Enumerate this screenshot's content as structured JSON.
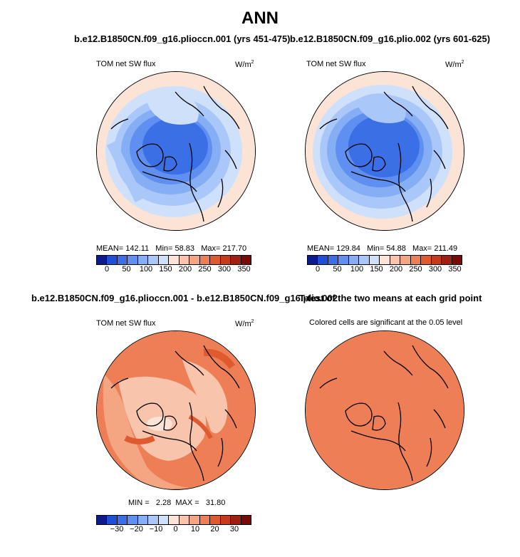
{
  "main_title": "ANN",
  "panels": {
    "top_left": {
      "case_title": "b.e12.B1850CN.f09_g16.plioccn.001 (yrs 451-475)",
      "variable": "TOM net SW flux",
      "units": "W/m",
      "units_sup": "2",
      "mean_label": "MEAN=",
      "mean": "142.11",
      "min_label": "Min=",
      "min": "58.83",
      "max_label": "Max=",
      "max": "217.70"
    },
    "top_right": {
      "case_title": "b.e12.B1850CN.f09_g16.plio.002 (yrs 601-625)",
      "variable": "TOM net SW flux",
      "units": "W/m",
      "units_sup": "2",
      "mean_label": "MEAN=",
      "mean": "129.84",
      "min_label": "Min=",
      "min": "54.88",
      "max_label": "Max=",
      "max": "211.49"
    },
    "bottom_left": {
      "case_title": "b.e12.B1850CN.f09_g16.plioccn.001 - b.e12.B1850CN.f09_g16.plio.002",
      "variable": "TOM net SW flux",
      "units": "W/m",
      "units_sup": "2",
      "min_label": "MIN =",
      "min": "2.28",
      "max_label": "MAX =",
      "max": "31.80"
    },
    "bottom_right": {
      "case_title": "T-test of the two means at each grid point",
      "subtitle": "Colored cells are significant at the 0.05 level"
    }
  },
  "colorbars": {
    "absolute": {
      "ticks": [
        "0",
        "50",
        "100",
        "150",
        "200",
        "250",
        "300",
        "350"
      ],
      "colors": [
        "#0b1a8c",
        "#1e4fd8",
        "#3a6fe6",
        "#5f8ff0",
        "#85aef5",
        "#a9c7f9",
        "#cfe0fb",
        "#fbe3d6",
        "#f8c4ab",
        "#f4a582",
        "#ee7e55",
        "#e05a30",
        "#c83a1c",
        "#a11f10",
        "#7a0a05"
      ]
    },
    "difference": {
      "ticks": [
        "−30",
        "−20",
        "−10",
        "0",
        "10",
        "20",
        "30"
      ],
      "colors": [
        "#0b1a8c",
        "#1e4fd8",
        "#3a6fe6",
        "#5f8ff0",
        "#85aef5",
        "#a9c7f9",
        "#cfe0fb",
        "#fbe3d6",
        "#f8c4ab",
        "#f4a582",
        "#ee7e55",
        "#e05a30",
        "#c83a1c",
        "#a11f10",
        "#7a0a05"
      ]
    }
  }
}
